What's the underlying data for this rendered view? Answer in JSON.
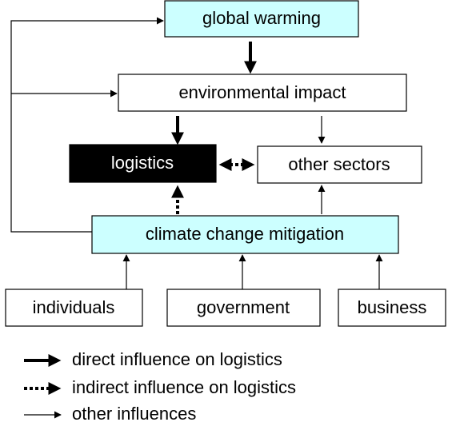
{
  "nodes": [
    {
      "label": "global warming"
    },
    {
      "label": "environmental impact"
    },
    {
      "label": "logistics"
    },
    {
      "label": "other sectors"
    },
    {
      "label": "climate change mitigation"
    },
    {
      "label": "individuals"
    },
    {
      "label": "government"
    },
    {
      "label": "business"
    }
  ],
  "legend": [
    {
      "label": "direct influence on logistics"
    },
    {
      "label": "indirect influence on logistics"
    },
    {
      "label": "other influences"
    }
  ]
}
